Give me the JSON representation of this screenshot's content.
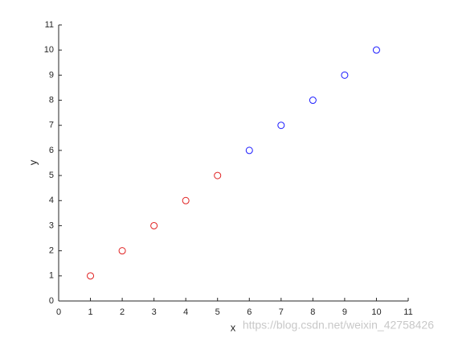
{
  "chart_data": {
    "type": "scatter",
    "xlabel": "x",
    "ylabel": "y",
    "xlim": [
      0,
      11
    ],
    "ylim": [
      0,
      11
    ],
    "xticks": [
      0,
      1,
      2,
      3,
      4,
      5,
      6,
      7,
      8,
      9,
      10,
      11
    ],
    "yticks": [
      0,
      1,
      2,
      3,
      4,
      5,
      6,
      7,
      8,
      9,
      10,
      11
    ],
    "series": [
      {
        "color": "#e02020",
        "x": [
          1,
          2,
          3,
          4,
          5
        ],
        "values": [
          1,
          2,
          3,
          4,
          5
        ]
      },
      {
        "color": "#1a1aff",
        "x": [
          6,
          7,
          8,
          9,
          10
        ],
        "values": [
          6,
          7,
          8,
          9,
          10
        ]
      }
    ],
    "watermark": "https://blog.csdn.net/weixin_42758426"
  }
}
